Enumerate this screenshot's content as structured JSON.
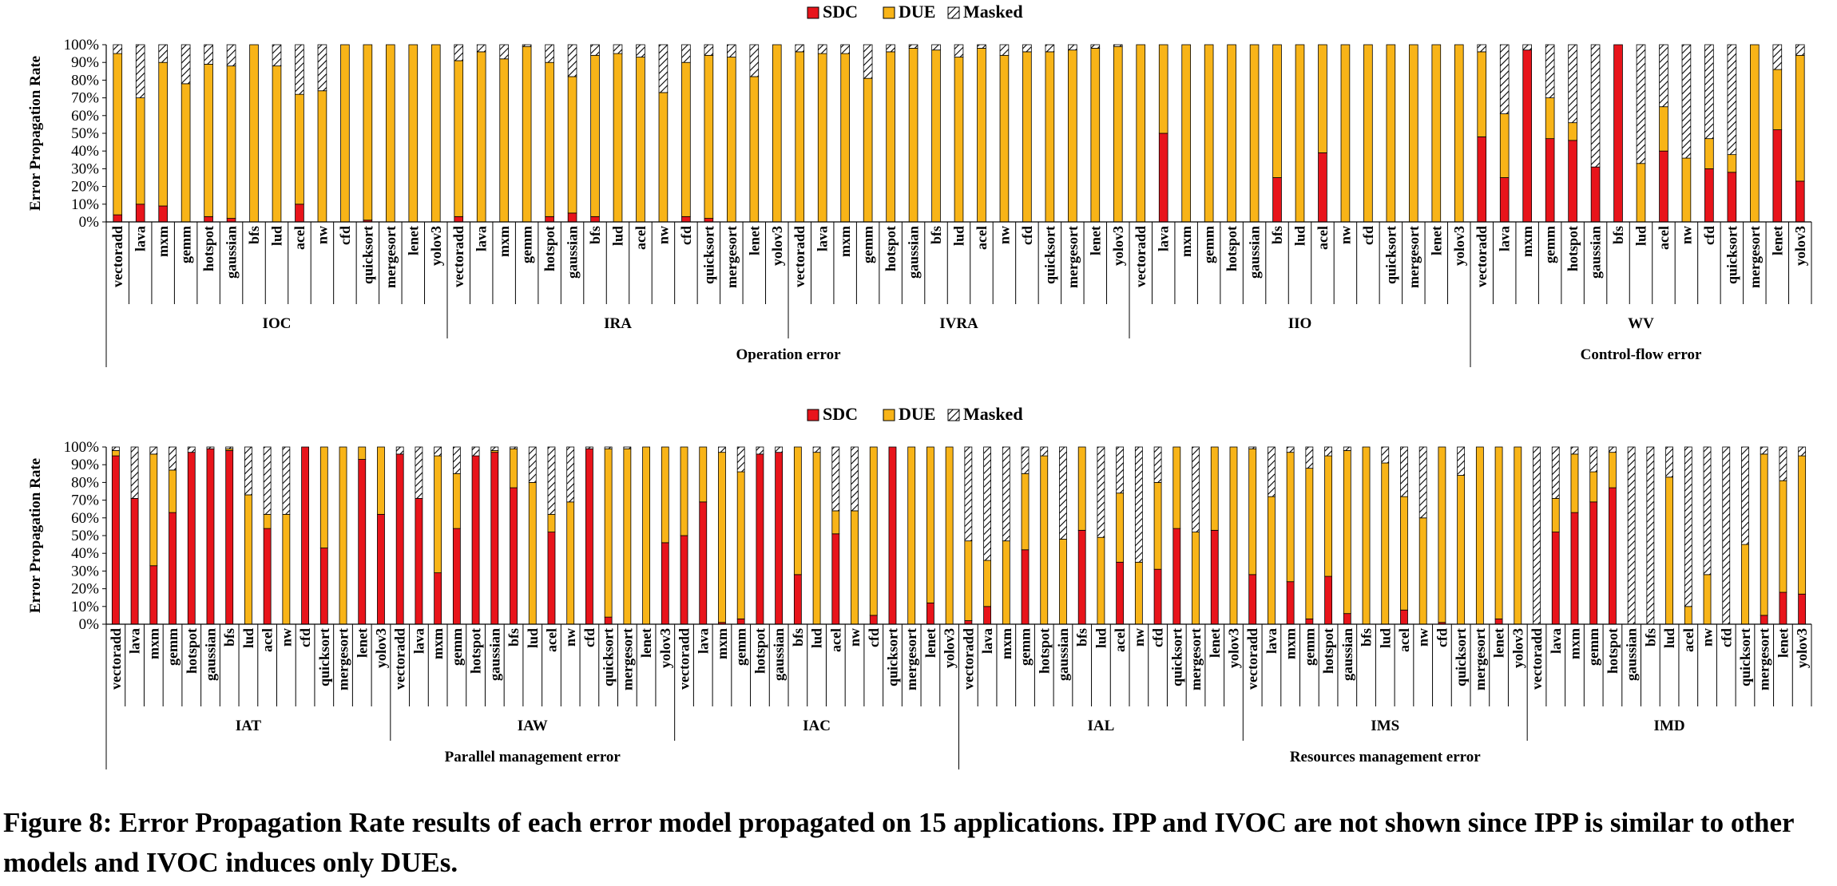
{
  "colors": {
    "sdc": "#e8141b",
    "due": "#f8b418",
    "masked": "#ffffff",
    "stroke": "#000000"
  },
  "caption": "Figure 8: Error Propagation Rate results of each error model propagated on 15 applications. IPP and IVOC are not shown since IPP is similar to other models and IVOC induces only DUEs.",
  "chart_data": [
    {
      "type": "bar",
      "stacked": true,
      "ylabel": "Error Propagation Rate",
      "ylim": [
        0,
        100
      ],
      "yticks": [
        "0%",
        "10%",
        "20%",
        "30%",
        "40%",
        "50%",
        "60%",
        "70%",
        "80%",
        "90%",
        "100%"
      ],
      "legend": [
        "SDC",
        "DUE",
        "Masked"
      ],
      "legend_position": "top-center",
      "categories": [
        "vectoradd",
        "lava",
        "mxm",
        "gemm",
        "hotspot",
        "gaussian",
        "bfs",
        "lud",
        "acel",
        "nw",
        "cfd",
        "quicksort",
        "mergesort",
        "lenet",
        "yolov3"
      ],
      "groups": [
        {
          "name": "IOC",
          "sdc": [
            4,
            10,
            9,
            0,
            3,
            2,
            0,
            0,
            10,
            0,
            0,
            1,
            0,
            0,
            0
          ],
          "due": [
            91,
            60,
            81,
            78,
            86,
            86,
            100,
            88,
            62,
            74,
            100,
            99,
            100,
            100,
            100
          ]
        },
        {
          "name": "IRA",
          "sdc": [
            3,
            0,
            0,
            0,
            3,
            5,
            3,
            0,
            0,
            0,
            3,
            2,
            0,
            0,
            0
          ],
          "due": [
            88,
            96,
            92,
            99,
            87,
            77,
            91,
            95,
            93,
            73,
            87,
            92,
            93,
            82,
            100
          ]
        },
        {
          "name": "IVRA",
          "sdc": [
            0,
            0,
            0,
            0,
            0,
            0,
            0,
            0,
            0,
            0,
            0,
            0,
            0,
            0,
            0
          ],
          "due": [
            96,
            95,
            95,
            81,
            96,
            98,
            97,
            93,
            98,
            94,
            96,
            96,
            97,
            98,
            99
          ]
        },
        {
          "name": "IIO",
          "sdc": [
            0,
            50,
            0,
            0,
            0,
            0,
            25,
            0,
            39,
            0,
            0,
            0,
            0,
            0,
            0
          ],
          "due": [
            100,
            50,
            100,
            100,
            100,
            100,
            75,
            100,
            61,
            100,
            100,
            100,
            100,
            100,
            100
          ]
        },
        {
          "name": "WV",
          "sdc": [
            48,
            25,
            97,
            47,
            46,
            31,
            100,
            0,
            40,
            0,
            30,
            28,
            0,
            52,
            23
          ],
          "due": [
            48,
            36,
            0,
            23,
            10,
            0,
            0,
            33,
            25,
            36,
            17,
            10,
            100,
            34,
            71
          ]
        }
      ],
      "supergroups": [
        {
          "name": "Operation error",
          "groups": [
            "IOC",
            "IRA",
            "IVRA",
            "IIO"
          ]
        },
        {
          "name": "Control-flow error",
          "groups": [
            "WV"
          ]
        }
      ]
    },
    {
      "type": "bar",
      "stacked": true,
      "ylabel": "Error Propagation Rate",
      "ylim": [
        0,
        100
      ],
      "yticks": [
        "0%",
        "10%",
        "20%",
        "30%",
        "40%",
        "50%",
        "60%",
        "70%",
        "80%",
        "90%",
        "100%"
      ],
      "legend": [
        "SDC",
        "DUE",
        "Masked"
      ],
      "legend_position": "top-center",
      "categories": [
        "vectoradd",
        "lava",
        "mxm",
        "gemm",
        "hotspot",
        "gaussian",
        "bfs",
        "lud",
        "acel",
        "nw",
        "cfd",
        "quicksort",
        "mergesort",
        "lenet",
        "yolov3"
      ],
      "groups": [
        {
          "name": "IAT",
          "sdc": [
            95,
            71,
            33,
            63,
            97,
            99,
            98,
            0,
            54,
            0,
            100,
            43,
            0,
            93,
            62
          ],
          "due": [
            3,
            0,
            63,
            24,
            0,
            0,
            1,
            73,
            8,
            62,
            0,
            57,
            100,
            7,
            38
          ]
        },
        {
          "name": "IAW",
          "sdc": [
            96,
            71,
            29,
            54,
            95,
            97,
            77,
            0,
            52,
            0,
            99,
            4,
            0,
            0,
            46
          ],
          "due": [
            0,
            0,
            66,
            31,
            0,
            1,
            22,
            80,
            10,
            69,
            0,
            95,
            99,
            100,
            54
          ]
        },
        {
          "name": "IAC",
          "sdc": [
            50,
            69,
            1,
            3,
            96,
            97,
            28,
            0,
            51,
            0,
            5,
            100,
            0,
            12,
            0
          ],
          "due": [
            50,
            31,
            96,
            83,
            0,
            0,
            72,
            97,
            13,
            64,
            95,
            0,
            100,
            88,
            100
          ]
        },
        {
          "name": "IAL",
          "sdc": [
            2,
            10,
            0,
            42,
            0,
            0,
            53,
            0,
            35,
            0,
            31,
            54,
            0,
            53,
            0
          ],
          "due": [
            45,
            26,
            47,
            43,
            95,
            48,
            47,
            49,
            39,
            35,
            49,
            46,
            52,
            47,
            100
          ]
        },
        {
          "name": "IMS",
          "sdc": [
            28,
            0,
            24,
            3,
            27,
            6,
            0,
            0,
            8,
            0,
            1,
            0,
            0,
            3,
            0
          ],
          "due": [
            71,
            72,
            73,
            85,
            68,
            92,
            100,
            91,
            64,
            60,
            99,
            84,
            100,
            97,
            100
          ]
        },
        {
          "name": "IMD",
          "sdc": [
            0,
            52,
            63,
            69,
            77,
            0,
            0,
            0,
            0,
            0,
            0,
            0,
            5,
            18,
            17
          ],
          "due": [
            0,
            19,
            33,
            17,
            20,
            0,
            0,
            83,
            10,
            28,
            0,
            45,
            91,
            63,
            78
          ]
        }
      ],
      "supergroups": [
        {
          "name": "Parallel management error",
          "groups": [
            "IAT",
            "IAW",
            "IAC"
          ]
        },
        {
          "name": "Resources management error",
          "groups": [
            "IAL",
            "IMS",
            "IMD"
          ]
        }
      ]
    }
  ]
}
